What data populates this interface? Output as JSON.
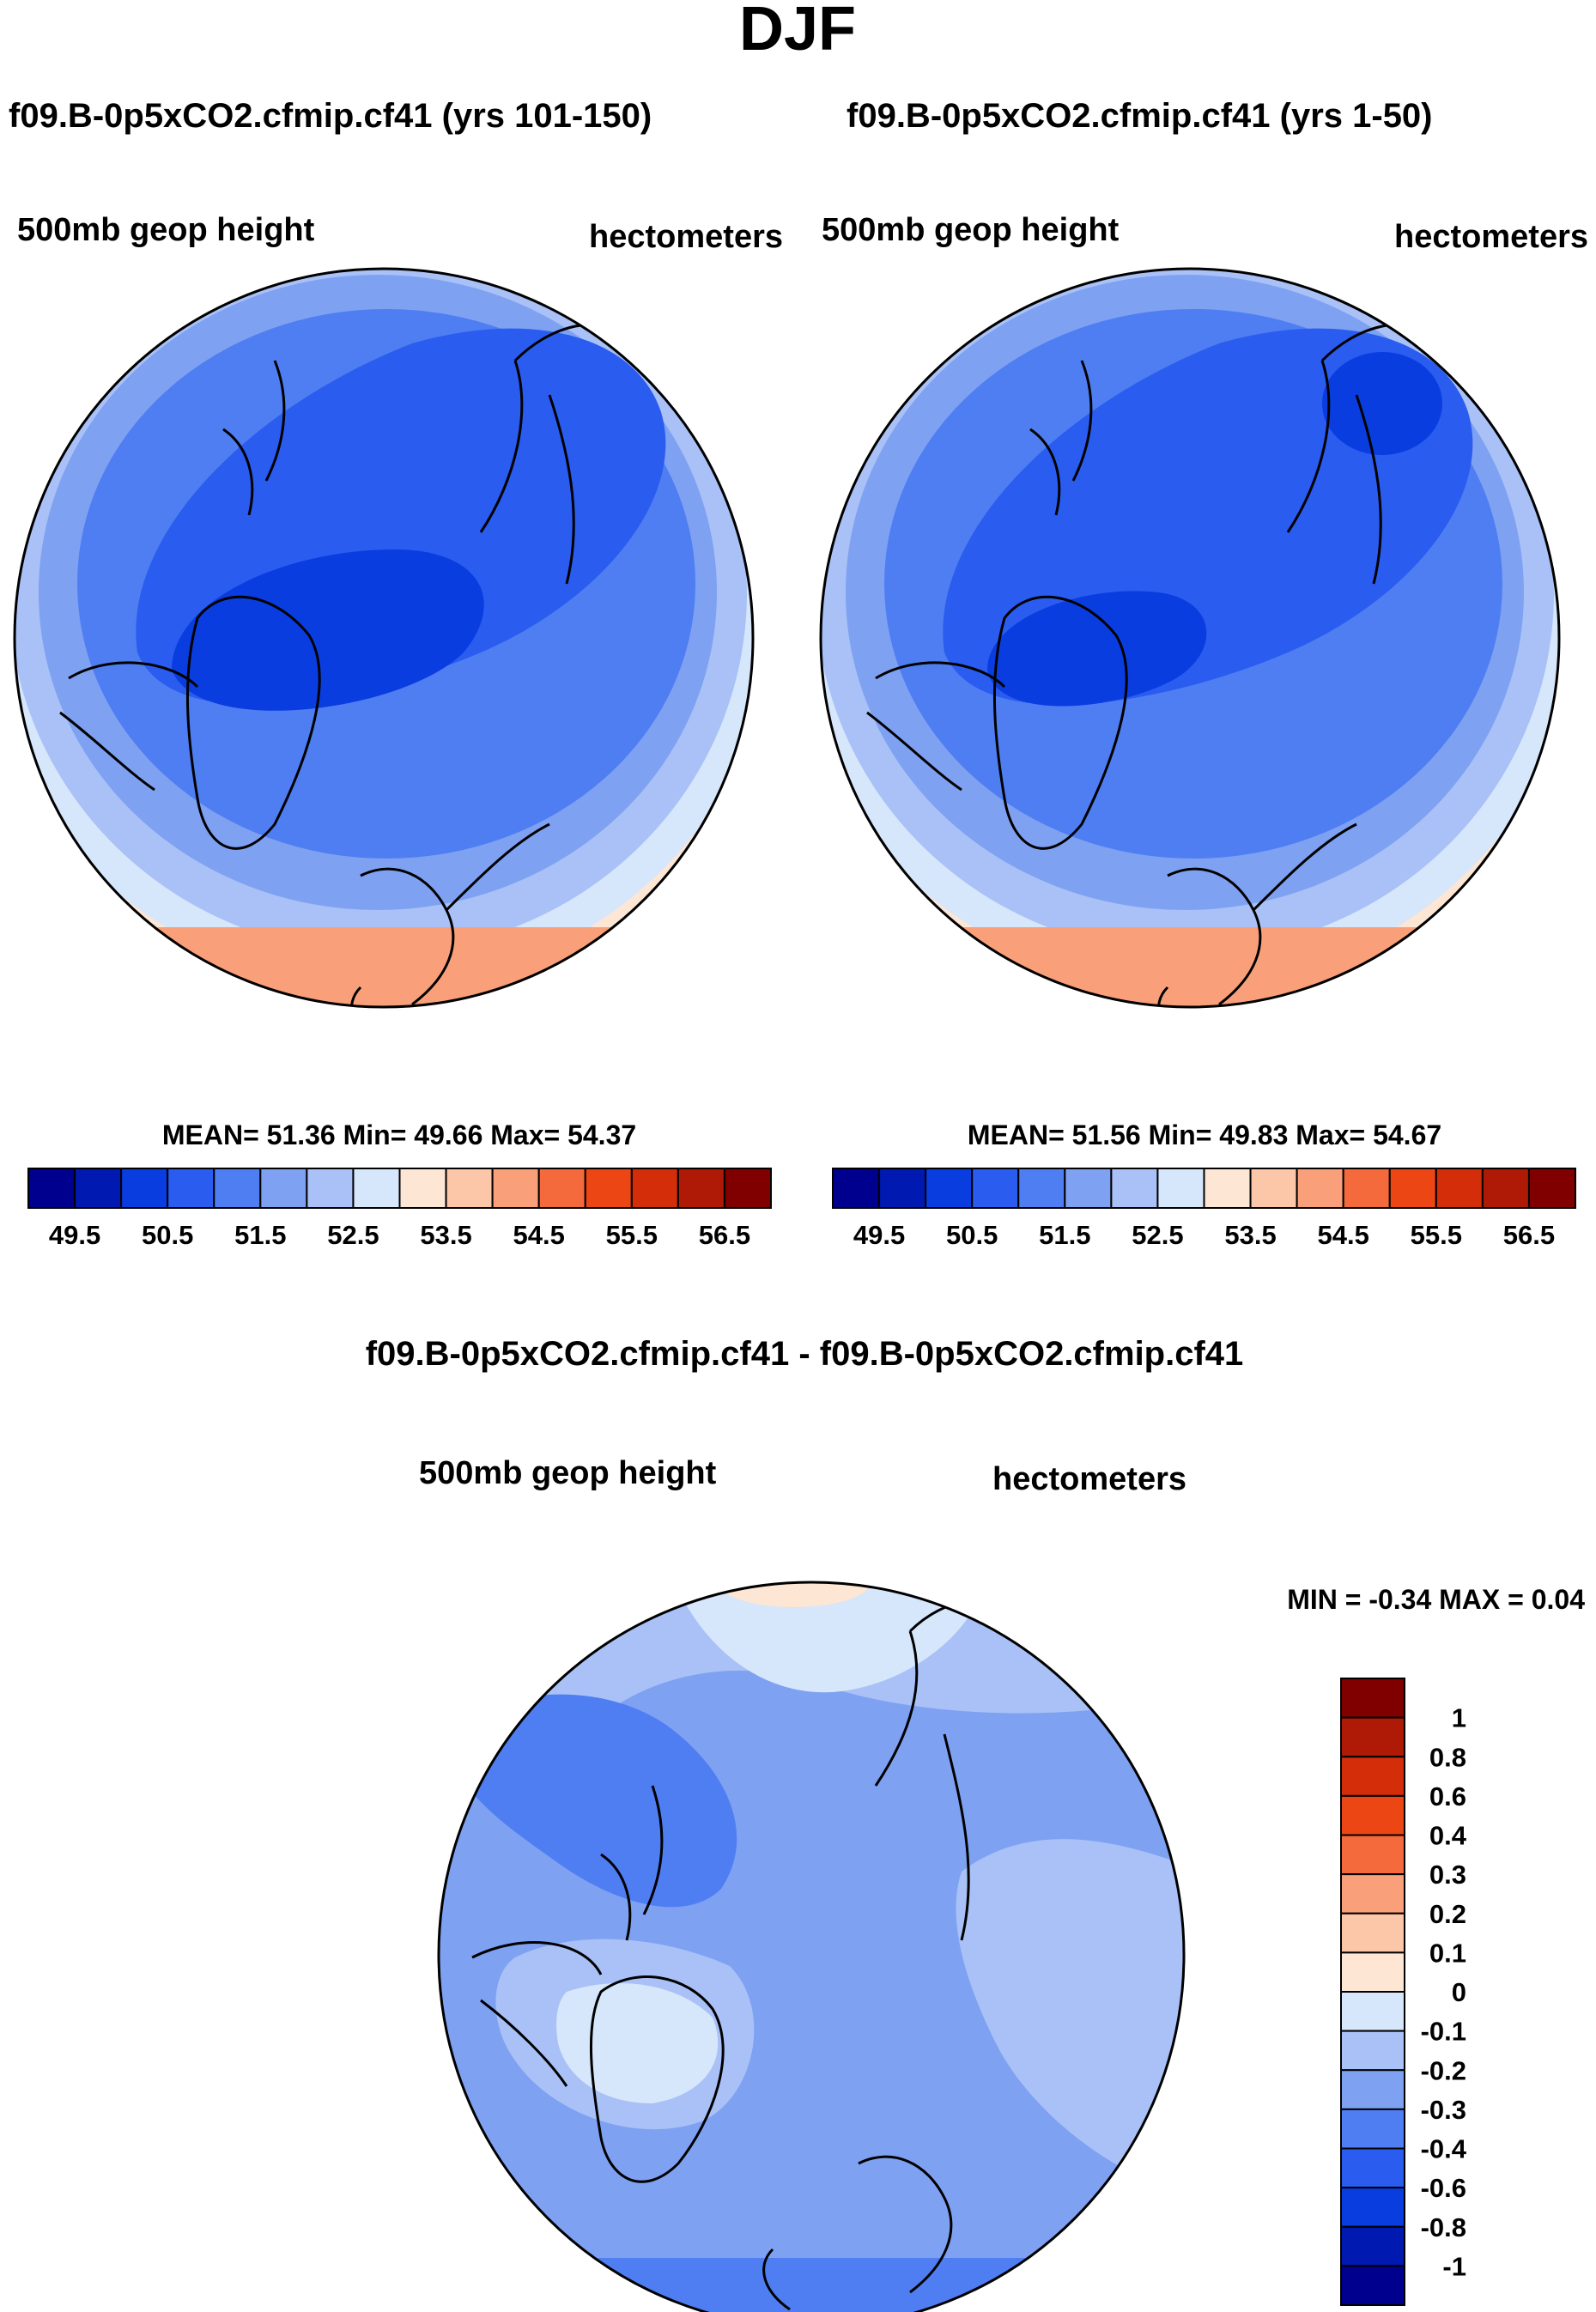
{
  "page": {
    "title": "DJF"
  },
  "colors": {
    "ocean_fill_note": "filled contour polar maps",
    "coastline": "#000000",
    "outline": "#000000"
  },
  "chart_data": [
    {
      "type": "heatmap",
      "id": "top-left",
      "title": "f09.B-0p5xCO2.cfmip.cf41 (yrs 101-150)",
      "variable_label": "500mb geop height",
      "units_label": "hectometers",
      "stats_text": "MEAN=  51.36  Min=  49.66  Max=  54.37",
      "mean": 51.36,
      "min": 49.66,
      "max": 54.37,
      "levels": [
        "49.5",
        "50.5",
        "51.5",
        "52.5",
        "53.5",
        "54.5",
        "55.5",
        "56.5"
      ],
      "colorbar_colors": [
        "#00008f",
        "#0019b0",
        "#0a3de0",
        "#2a5cf0",
        "#4f7ef2",
        "#7ea1f2",
        "#a9c1f6",
        "#d6e6fb",
        "#fde6d4",
        "#fcc6a8",
        "#f9a07a",
        "#f46a3c",
        "#eb4614",
        "#d42d0a",
        "#ae1a06",
        "#800000"
      ],
      "colorbar_orientation": "horizontal"
    },
    {
      "type": "heatmap",
      "id": "top-right",
      "title": "f09.B-0p5xCO2.cfmip.cf41 (yrs 1-50)",
      "variable_label": "500mb geop height",
      "units_label": "hectometers",
      "stats_text": "MEAN=  51.56  Min=  49.83  Max=  54.67",
      "mean": 51.56,
      "min": 49.83,
      "max": 54.67,
      "levels": [
        "49.5",
        "50.5",
        "51.5",
        "52.5",
        "53.5",
        "54.5",
        "55.5",
        "56.5"
      ],
      "colorbar_colors": [
        "#00008f",
        "#0019b0",
        "#0a3de0",
        "#2a5cf0",
        "#4f7ef2",
        "#7ea1f2",
        "#a9c1f6",
        "#d6e6fb",
        "#fde6d4",
        "#fcc6a8",
        "#f9a07a",
        "#f46a3c",
        "#eb4614",
        "#d42d0a",
        "#ae1a06",
        "#800000"
      ],
      "colorbar_orientation": "horizontal"
    },
    {
      "type": "heatmap",
      "id": "difference",
      "title": "f09.B-0p5xCO2.cfmip.cf41 - f09.B-0p5xCO2.cfmip.cf41",
      "variable_label": "500mb geop height",
      "units_label": "hectometers",
      "stats_text": "MIN =  -0.34 MAX =   0.04",
      "min": -0.34,
      "max": 0.04,
      "levels": [
        "1",
        "0.8",
        "0.6",
        "0.4",
        "0.3",
        "0.2",
        "0.1",
        "0",
        "-0.1",
        "-0.2",
        "-0.3",
        "-0.4",
        "-0.6",
        "-0.8",
        "-1"
      ],
      "colorbar_colors": [
        "#800000",
        "#ae1a06",
        "#d42d0a",
        "#eb4614",
        "#f46a3c",
        "#f9a07a",
        "#fcc6a8",
        "#fde6d4",
        "#d6e6fb",
        "#a9c1f6",
        "#7ea1f2",
        "#4f7ef2",
        "#2a5cf0",
        "#0a3de0",
        "#0019b0",
        "#00008f"
      ],
      "colorbar_orientation": "vertical"
    }
  ]
}
